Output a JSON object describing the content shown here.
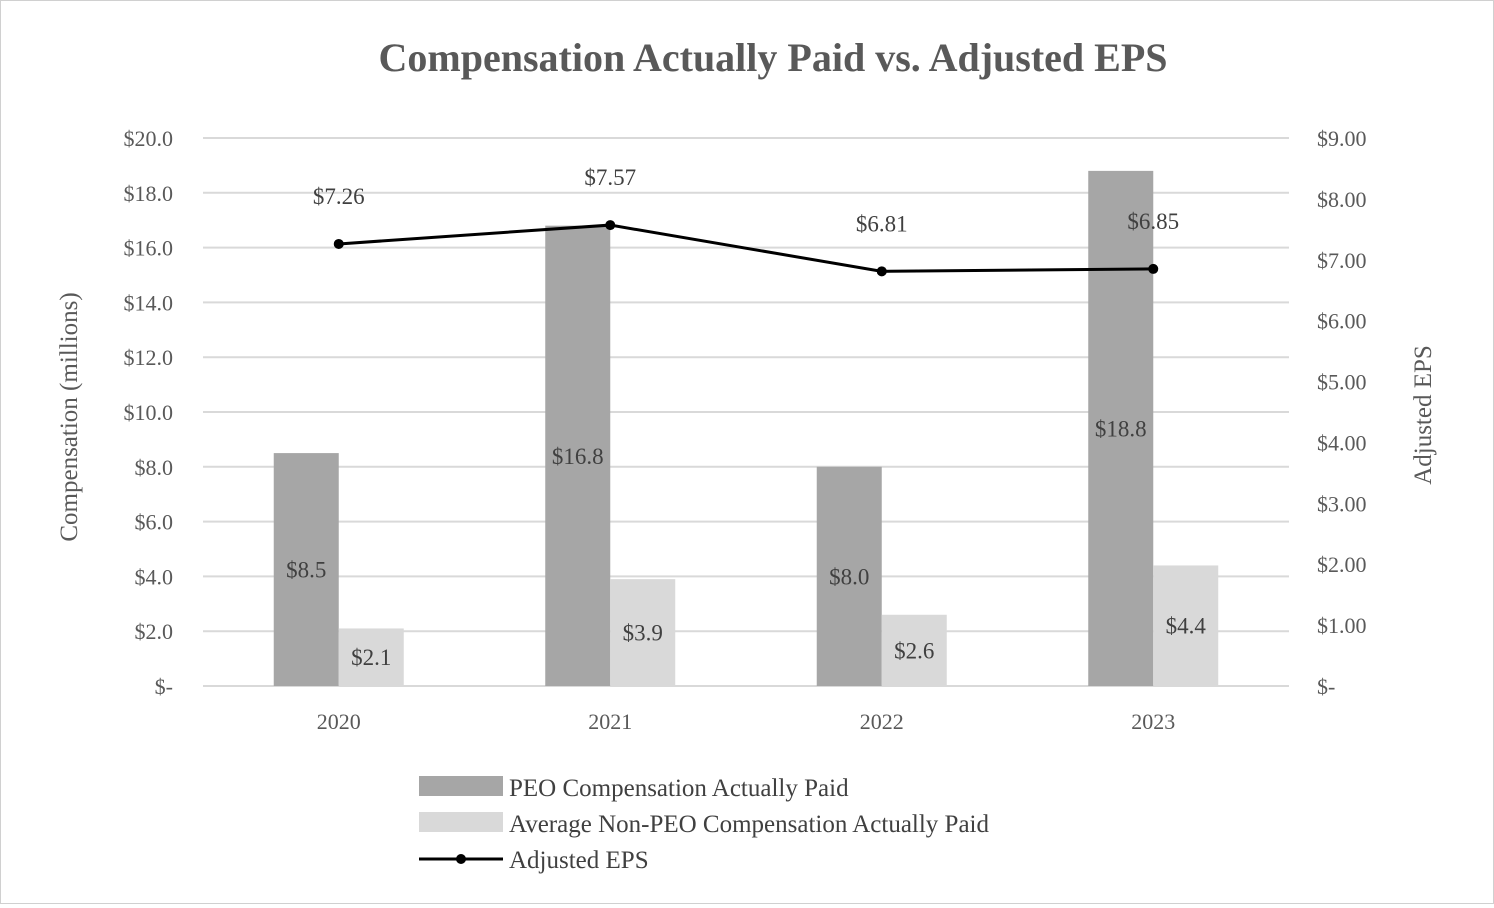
{
  "chart_data": {
    "type": "bar",
    "title": "Compensation Actually Paid vs. Adjusted EPS",
    "categories": [
      "2020",
      "2021",
      "2022",
      "2023"
    ],
    "ylabel": "Compensation (millions)",
    "y2label": "Adjusted EPS",
    "ylim": [
      0,
      20
    ],
    "y2lim": [
      0,
      9
    ],
    "y_ticks": [
      "$-",
      "$2.0",
      "$4.0",
      "$6.0",
      "$8.0",
      "$10.0",
      "$12.0",
      "$14.0",
      "$16.0",
      "$18.0",
      "$20.0"
    ],
    "y2_ticks": [
      "$-",
      "$1.00",
      "$2.00",
      "$3.00",
      "$4.00",
      "$5.00",
      "$6.00",
      "$7.00",
      "$8.00",
      "$9.00"
    ],
    "grid": true,
    "legend_position": "bottom",
    "series": [
      {
        "name": "PEO Compensation Actually Paid",
        "kind": "bar",
        "axis": "left",
        "color": "#a6a6a6",
        "values": [
          8.5,
          16.8,
          8.0,
          18.8
        ],
        "labels": [
          "$8.5",
          "$16.8",
          "$8.0",
          "$18.8"
        ]
      },
      {
        "name": "Average Non-PEO Compensation Actually Paid",
        "kind": "bar",
        "axis": "left",
        "color": "#d9d9d9",
        "values": [
          2.1,
          3.9,
          2.6,
          4.4
        ],
        "labels": [
          "$2.1",
          "$3.9",
          "$2.6",
          "$4.4"
        ]
      },
      {
        "name": "Adjusted EPS",
        "kind": "line",
        "axis": "right",
        "color": "#000000",
        "values": [
          7.26,
          7.57,
          6.81,
          6.85
        ],
        "labels": [
          "$7.26",
          "$7.57",
          "$6.81",
          "$6.85"
        ]
      }
    ],
    "gridline_color": "#d9d9d9",
    "text_color": "#595959"
  }
}
